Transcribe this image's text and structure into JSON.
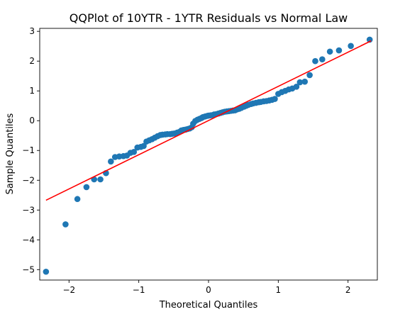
{
  "chart_data": {
    "type": "scatter",
    "title": "QQPlot of 10YTR - 1YTR Residuals vs Normal Law",
    "xlabel": "Theoretical Quantiles",
    "ylabel": "Sample Quantiles",
    "xlim": [
      -2.42,
      2.42
    ],
    "ylim": [
      -5.35,
      3.1
    ],
    "xticks": [
      -2,
      -1,
      0,
      1,
      2
    ],
    "yticks": [
      -5,
      -4,
      -3,
      -2,
      -1,
      0,
      1,
      2,
      3
    ],
    "grid": false,
    "colors": {
      "points": "#1f77b4",
      "line": "#ff0000"
    },
    "reference_line": {
      "x": [
        -2.33,
        2.33
      ],
      "y": [
        -2.67,
        2.68
      ]
    },
    "points": [
      [
        -2.33,
        -5.07
      ],
      [
        -2.05,
        -3.48
      ],
      [
        -1.88,
        -2.63
      ],
      [
        -1.75,
        -2.23
      ],
      [
        -1.64,
        -1.97
      ],
      [
        -1.55,
        -1.97
      ],
      [
        -1.47,
        -1.76
      ],
      [
        -1.4,
        -1.37
      ],
      [
        -1.34,
        -1.22
      ],
      [
        -1.28,
        -1.2
      ],
      [
        -1.22,
        -1.19
      ],
      [
        -1.17,
        -1.17
      ],
      [
        -1.12,
        -1.08
      ],
      [
        -1.07,
        -1.05
      ],
      [
        -1.02,
        -0.9
      ],
      [
        -0.97,
        -0.88
      ],
      [
        -0.93,
        -0.85
      ],
      [
        -0.89,
        -0.7
      ],
      [
        -0.85,
        -0.66
      ],
      [
        -0.81,
        -0.62
      ],
      [
        -0.77,
        -0.57
      ],
      [
        -0.73,
        -0.52
      ],
      [
        -0.69,
        -0.48
      ],
      [
        -0.66,
        -0.47
      ],
      [
        -0.62,
        -0.46
      ],
      [
        -0.59,
        -0.45
      ],
      [
        -0.55,
        -0.45
      ],
      [
        -0.52,
        -0.44
      ],
      [
        -0.49,
        -0.43
      ],
      [
        -0.45,
        -0.4
      ],
      [
        -0.42,
        -0.38
      ],
      [
        -0.39,
        -0.33
      ],
      [
        -0.36,
        -0.31
      ],
      [
        -0.33,
        -0.3
      ],
      [
        -0.3,
        -0.28
      ],
      [
        -0.27,
        -0.26
      ],
      [
        -0.24,
        -0.22
      ],
      [
        -0.22,
        -0.1
      ],
      [
        -0.19,
        -0.01
      ],
      [
        -0.16,
        0.03
      ],
      [
        -0.13,
        0.06
      ],
      [
        -0.1,
        0.09
      ],
      [
        -0.08,
        0.12
      ],
      [
        -0.05,
        0.14
      ],
      [
        -0.02,
        0.16
      ],
      [
        0.0,
        0.17
      ],
      [
        0.03,
        0.18
      ],
      [
        0.06,
        0.19
      ],
      [
        0.08,
        0.21
      ],
      [
        0.11,
        0.22
      ],
      [
        0.14,
        0.24
      ],
      [
        0.17,
        0.26
      ],
      [
        0.2,
        0.28
      ],
      [
        0.23,
        0.3
      ],
      [
        0.26,
        0.31
      ],
      [
        0.29,
        0.32
      ],
      [
        0.32,
        0.33
      ],
      [
        0.35,
        0.34
      ],
      [
        0.38,
        0.35
      ],
      [
        0.41,
        0.38
      ],
      [
        0.44,
        0.4
      ],
      [
        0.47,
        0.43
      ],
      [
        0.51,
        0.47
      ],
      [
        0.54,
        0.5
      ],
      [
        0.57,
        0.53
      ],
      [
        0.61,
        0.56
      ],
      [
        0.64,
        0.58
      ],
      [
        0.68,
        0.6
      ],
      [
        0.72,
        0.62
      ],
      [
        0.75,
        0.63
      ],
      [
        0.79,
        0.65
      ],
      [
        0.83,
        0.66
      ],
      [
        0.87,
        0.68
      ],
      [
        0.91,
        0.7
      ],
      [
        0.95,
        0.73
      ],
      [
        1.0,
        0.9
      ],
      [
        1.05,
        0.96
      ],
      [
        1.1,
        1.0
      ],
      [
        1.15,
        1.05
      ],
      [
        1.2,
        1.08
      ],
      [
        1.26,
        1.14
      ],
      [
        1.31,
        1.29
      ],
      [
        1.38,
        1.31
      ],
      [
        1.45,
        1.53
      ],
      [
        1.53,
        2.0
      ],
      [
        1.63,
        2.06
      ],
      [
        1.74,
        2.32
      ],
      [
        1.87,
        2.36
      ],
      [
        2.04,
        2.51
      ],
      [
        2.31,
        2.72
      ]
    ]
  }
}
